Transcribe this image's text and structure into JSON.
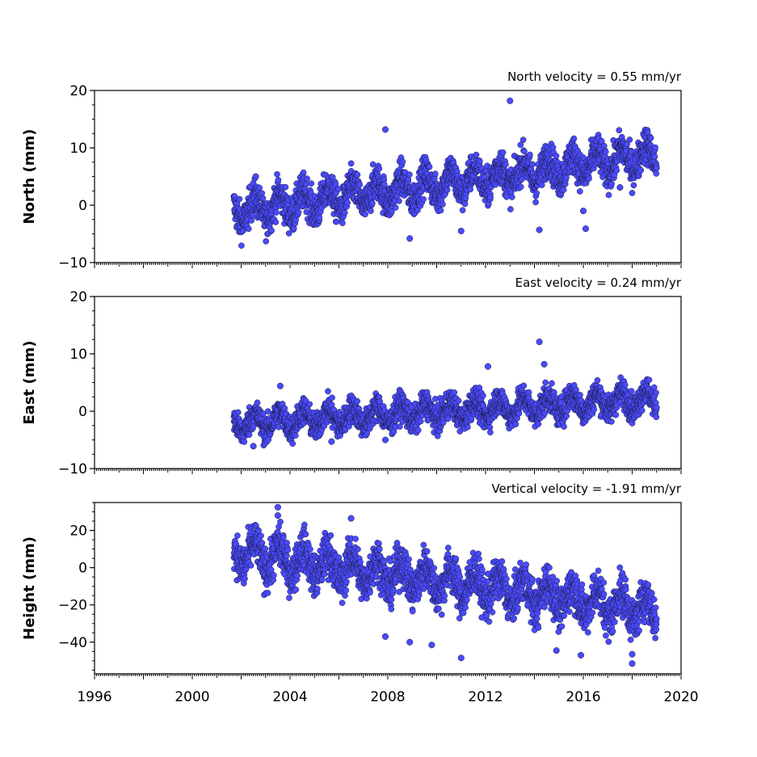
{
  "chart_data": [
    {
      "type": "scatter",
      "title": "North velocity = 0.55 mm/yr",
      "ylabel": "North (mm)",
      "ylim": [
        -10,
        20
      ],
      "yticks": [
        -10,
        0,
        10,
        20
      ],
      "xlim": [
        1996,
        2020
      ],
      "marker_color": "#4a4aff",
      "series": [
        {
          "x_range": [
            2001.7,
            2019.0
          ],
          "trend": {
            "at_2001_7": -1.2,
            "at_2019_0": 8.8
          },
          "scatter_band_mm": 2.2,
          "outliers": [
            {
              "x": 2007.9,
              "y": 13.2
            },
            {
              "x": 2013.0,
              "y": 18.2
            },
            {
              "x": 2008.9,
              "y": -5.8
            },
            {
              "x": 2011.0,
              "y": -4.5
            },
            {
              "x": 2014.2,
              "y": -4.3
            },
            {
              "x": 2016.1,
              "y": -4.1
            },
            {
              "x": 2016.0,
              "y": -1.0
            },
            {
              "x": 2017.5,
              "y": 3.1
            },
            {
              "x": 2002.6,
              "y": 5.0
            }
          ]
        }
      ]
    },
    {
      "type": "scatter",
      "title": "East velocity = 0.24 mm/yr",
      "ylabel": "East (mm)",
      "ylim": [
        -10,
        20
      ],
      "yticks": [
        -10,
        0,
        10,
        20
      ],
      "xlim": [
        1996,
        2020
      ],
      "marker_color": "#4a4aff",
      "series": [
        {
          "x_range": [
            2001.7,
            2019.0
          ],
          "trend": {
            "at_2001_7": -2.2,
            "at_2019_0": 2.2
          },
          "scatter_band_mm": 1.7,
          "outliers": [
            {
              "x": 2014.2,
              "y": 12.1
            },
            {
              "x": 2012.1,
              "y": 7.8
            },
            {
              "x": 2014.4,
              "y": 8.2
            },
            {
              "x": 2003.6,
              "y": 4.4
            },
            {
              "x": 2002.5,
              "y": -6.1
            },
            {
              "x": 2005.7,
              "y": -5.3
            },
            {
              "x": 2007.9,
              "y": -5.0
            }
          ]
        }
      ]
    },
    {
      "type": "scatter",
      "title": "Vertical velocity = -1.91 mm/yr",
      "ylabel": "Height (mm)",
      "ylim": [
        -57,
        35
      ],
      "yticks": [
        -40,
        -20,
        0,
        20
      ],
      "xlim": [
        1996,
        2020
      ],
      "xticks": [
        1996,
        2000,
        2004,
        2008,
        2012,
        2016,
        2020
      ],
      "xticklabels": [
        "1996",
        "2000",
        "2004",
        "2008",
        "2012",
        "2016",
        "2020"
      ],
      "marker_color": "#4a4aff",
      "series": [
        {
          "x_range": [
            2001.7,
            2019.0
          ],
          "trend": {
            "at_2001_7": 8,
            "at_2019_0": -23
          },
          "scatter_band_mm": 8,
          "outliers": [
            {
              "x": 2003.5,
              "y": 32.5
            },
            {
              "x": 2003.5,
              "y": 28.0
            },
            {
              "x": 2006.5,
              "y": 26.5
            },
            {
              "x": 2011.0,
              "y": -48.5
            },
            {
              "x": 2009.8,
              "y": -41.5
            },
            {
              "x": 2008.9,
              "y": -40.0
            },
            {
              "x": 2007.9,
              "y": -37.0
            },
            {
              "x": 2015.9,
              "y": -47.0
            },
            {
              "x": 2018.0,
              "y": -51.5
            },
            {
              "x": 2018.0,
              "y": -46.5
            },
            {
              "x": 2014.9,
              "y": -44.5
            }
          ]
        }
      ]
    }
  ]
}
